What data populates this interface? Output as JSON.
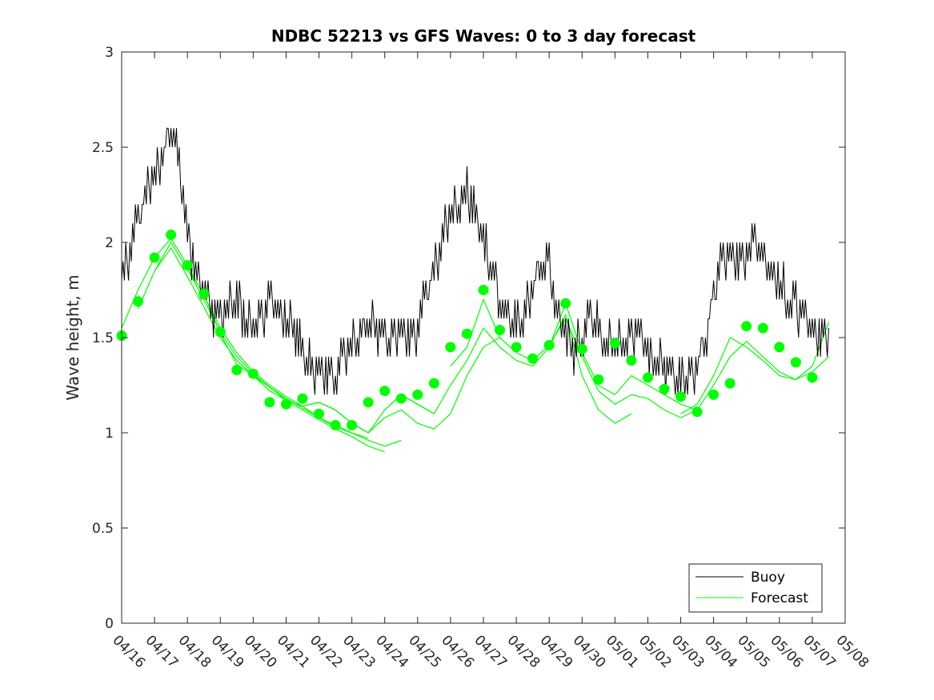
{
  "chart_data": {
    "type": "line",
    "title": "NDBC 52213 vs GFS Waves: 0 to 3 day forecast",
    "xlabel": "",
    "ylabel": "Wave height, m",
    "xlim": [
      "04/16",
      "05/08"
    ],
    "ylim": [
      0,
      3
    ],
    "yticks": [
      "0",
      "0.5",
      "1",
      "1.5",
      "2",
      "2.5",
      "3"
    ],
    "xticks": [
      "04/16",
      "04/17",
      "04/18",
      "04/19",
      "04/20",
      "04/21",
      "04/22",
      "04/23",
      "04/24",
      "04/25",
      "04/26",
      "04/27",
      "04/28",
      "04/29",
      "04/30",
      "05/01",
      "05/02",
      "05/03",
      "05/04",
      "05/05",
      "05/06",
      "05/07",
      "05/08"
    ],
    "legend": {
      "position": "bottom-right",
      "entries": [
        "Buoy",
        "Forecast"
      ]
    },
    "colors": {
      "buoy": "#000000",
      "forecast": "#00ff00"
    },
    "buoy": {
      "name": "Buoy",
      "x": [
        0,
        0.25,
        0.5,
        0.75,
        1.0,
        1.25,
        1.5,
        1.75,
        2.0,
        2.25,
        2.5,
        2.75,
        3.0,
        3.25,
        3.5,
        3.75,
        4.0,
        4.25,
        4.5,
        4.75,
        5.0,
        5.25,
        5.5,
        5.75,
        6.0,
        6.25,
        6.5,
        6.75,
        7.0,
        7.25,
        7.5,
        7.75,
        8.0,
        8.25,
        8.5,
        8.75,
        9.0,
        9.25,
        9.5,
        9.75,
        10.0,
        10.25,
        10.5,
        10.75,
        11.0,
        11.25,
        11.5,
        11.75,
        12.0,
        12.25,
        12.5,
        12.75,
        13.0,
        13.25,
        13.5,
        13.75,
        14.0,
        14.25,
        14.5,
        14.75,
        15.0,
        15.25,
        15.5,
        15.75,
        16.0,
        16.25,
        16.5,
        16.75,
        17.0,
        17.25,
        17.5,
        17.75,
        18.0,
        18.25,
        18.5,
        18.75,
        19.0,
        19.25,
        19.5,
        19.75,
        20.0,
        20.25,
        20.5,
        20.75,
        21.0,
        21.25,
        21.5
      ],
      "values": [
        1.85,
        1.95,
        2.1,
        2.25,
        2.35,
        2.45,
        2.6,
        2.4,
        2.0,
        1.85,
        1.75,
        1.65,
        1.6,
        1.65,
        1.7,
        1.6,
        1.55,
        1.6,
        1.7,
        1.65,
        1.6,
        1.55,
        1.4,
        1.35,
        1.3,
        1.3,
        1.3,
        1.4,
        1.45,
        1.5,
        1.6,
        1.55,
        1.45,
        1.5,
        1.55,
        1.5,
        1.55,
        1.7,
        1.85,
        2.0,
        2.15,
        2.2,
        2.25,
        2.15,
        2.0,
        1.85,
        1.7,
        1.6,
        1.55,
        1.6,
        1.75,
        1.9,
        1.85,
        1.6,
        1.5,
        1.45,
        1.5,
        1.6,
        1.55,
        1.45,
        1.5,
        1.45,
        1.5,
        1.55,
        1.4,
        1.35,
        1.35,
        1.3,
        1.25,
        1.3,
        1.35,
        1.5,
        1.7,
        1.9,
        1.95,
        1.9,
        1.95,
        2.0,
        1.9,
        1.85,
        1.8,
        1.7,
        1.65,
        1.6,
        1.55,
        1.5,
        1.55
      ]
    },
    "forecast_runs": [
      {
        "name": "Forecast",
        "x": [
          0,
          0.5,
          1,
          1.5,
          2,
          2.5,
          3,
          3.5,
          4,
          4.5,
          5,
          5.5,
          6,
          6.5,
          7,
          7.5
        ],
        "values": [
          1.55,
          1.75,
          1.92,
          2.02,
          1.88,
          1.72,
          1.55,
          1.42,
          1.32,
          1.25,
          1.19,
          1.14,
          1.08,
          1.03,
          1.0,
          0.97
        ]
      },
      {
        "name": "Forecast",
        "x": [
          0.5,
          1,
          1.5,
          2,
          2.5,
          3,
          3.5,
          4,
          4.5,
          5,
          5.5,
          6,
          6.5,
          7,
          7.5,
          8
        ],
        "values": [
          1.65,
          1.85,
          1.97,
          1.82,
          1.66,
          1.5,
          1.38,
          1.3,
          1.22,
          1.17,
          1.12,
          1.07,
          1.02,
          0.98,
          0.93,
          0.9
        ]
      },
      {
        "name": "Forecast",
        "x": [
          1,
          1.5,
          2,
          2.5,
          3,
          3.5,
          4,
          4.5,
          5,
          5.5,
          6,
          6.5,
          7,
          7.5,
          8,
          8.5
        ],
        "values": [
          1.85,
          2.0,
          1.86,
          1.7,
          1.53,
          1.4,
          1.31,
          1.24,
          1.18,
          1.13,
          1.08,
          1.04,
          1.0,
          0.96,
          0.93,
          0.96
        ]
      },
      {
        "name": "Forecast",
        "x": [
          2,
          2.5,
          3,
          3.5,
          4,
          4.5,
          5,
          5.5,
          6,
          6.5,
          7,
          7.5,
          8,
          8.5,
          9,
          9.5
        ],
        "values": [
          1.86,
          1.73,
          1.52,
          1.36,
          1.3,
          1.24,
          1.17,
          1.14,
          1.16,
          1.12,
          1.05,
          1.0,
          1.12,
          1.2,
          1.15,
          1.1
        ]
      },
      {
        "name": "Forecast",
        "x": [
          4,
          4.5,
          5,
          5.5,
          6,
          6.5,
          7,
          7.5,
          8,
          8.5,
          9,
          9.5,
          10,
          10.5,
          11,
          11.5
        ],
        "values": [
          1.3,
          1.24,
          1.17,
          1.14,
          1.16,
          1.12,
          1.05,
          1.0,
          1.08,
          1.12,
          1.05,
          1.02,
          1.1,
          1.3,
          1.45,
          1.5
        ]
      },
      {
        "name": "Forecast",
        "x": [
          8,
          8.5,
          9,
          9.5,
          10,
          10.5,
          11,
          11.5,
          12,
          12.5,
          13,
          13.5,
          14,
          14.5,
          15,
          15.5
        ],
        "values": [
          1.12,
          1.2,
          1.15,
          1.1,
          1.25,
          1.38,
          1.55,
          1.45,
          1.38,
          1.35,
          1.45,
          1.62,
          1.3,
          1.12,
          1.05,
          1.1
        ]
      },
      {
        "name": "Forecast",
        "x": [
          10,
          10.5,
          11,
          11.5,
          12,
          12.5,
          13,
          13.5,
          14,
          14.5,
          15,
          15.5,
          16,
          16.5,
          17,
          17.5
        ],
        "values": [
          1.35,
          1.45,
          1.7,
          1.5,
          1.42,
          1.38,
          1.46,
          1.6,
          1.4,
          1.22,
          1.15,
          1.2,
          1.18,
          1.12,
          1.08,
          1.12
        ]
      },
      {
        "name": "Forecast",
        "x": [
          13,
          13.5,
          14,
          14.5,
          15,
          15.5,
          16,
          16.5,
          17,
          17.5,
          18,
          18.5,
          19,
          19.5,
          20,
          20.5,
          21,
          21.5
        ],
        "values": [
          1.45,
          1.68,
          1.42,
          1.25,
          1.2,
          1.3,
          1.25,
          1.2,
          1.15,
          1.12,
          1.25,
          1.4,
          1.48,
          1.4,
          1.32,
          1.28,
          1.32,
          1.4
        ]
      },
      {
        "name": "Forecast",
        "x": [
          17,
          17.5,
          18,
          18.5,
          19,
          19.5,
          20,
          20.5,
          21,
          21.5
        ],
        "values": [
          1.1,
          1.15,
          1.3,
          1.5,
          1.45,
          1.38,
          1.3,
          1.28,
          1.35,
          1.58
        ]
      }
    ],
    "analysis_points": {
      "name": "Forecast",
      "x": [
        0,
        0.5,
        1,
        1.5,
        2,
        2.5,
        3,
        3.5,
        4,
        4.5,
        5,
        5.5,
        6,
        6.5,
        7,
        7.5,
        8,
        8.5,
        9,
        9.5,
        10,
        10.5,
        11,
        11.5,
        12,
        12.5,
        13,
        13.5,
        14,
        14.5,
        15,
        15.5,
        16,
        16.5,
        17,
        17.5,
        18,
        18.5,
        19,
        19.5,
        20,
        20.5,
        21
      ],
      "values": [
        1.51,
        1.69,
        1.92,
        2.04,
        1.88,
        1.73,
        1.53,
        1.33,
        1.31,
        1.16,
        1.15,
        1.18,
        1.1,
        1.04,
        1.04,
        1.16,
        1.22,
        1.18,
        1.2,
        1.26,
        1.45,
        1.52,
        1.75,
        1.54,
        1.45,
        1.39,
        1.46,
        1.68,
        1.44,
        1.28,
        1.47,
        1.38,
        1.29,
        1.23,
        1.19,
        1.11,
        1.2,
        1.26,
        1.56,
        1.55,
        1.45,
        1.37,
        1.29
      ]
    }
  }
}
